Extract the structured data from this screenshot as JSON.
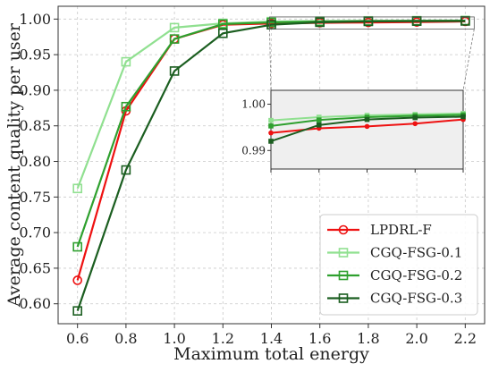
{
  "chart_data": {
    "type": "line",
    "xlabel": "Maximum total energy",
    "ylabel": "Average content quality per user",
    "x": [
      0.6,
      0.8,
      1.0,
      1.2,
      1.4,
      1.6,
      1.8,
      2.0,
      2.2
    ],
    "xlim": [
      0.52,
      2.28
    ],
    "ylim": [
      0.572,
      1.018
    ],
    "xticks": [
      "0.6",
      "0.8",
      "1.0",
      "1.2",
      "1.4",
      "1.6",
      "1.8",
      "2.0",
      "2.2"
    ],
    "yticks": [
      "0.60",
      "0.65",
      "0.70",
      "0.75",
      "0.80",
      "0.85",
      "0.90",
      "0.95",
      "1.00"
    ],
    "grid": true,
    "legend_position": "bottom-right",
    "series": [
      {
        "name": "LPDRL-F",
        "color": "#ee1111",
        "marker": "circle",
        "values": [
          0.633,
          0.871,
          0.972,
          0.992,
          0.9938,
          0.9948,
          0.9952,
          0.9958,
          0.9967
        ]
      },
      {
        "name": "CGQ-FSG-0.1",
        "color": "#90e090",
        "marker": "square",
        "values": [
          0.762,
          0.94,
          0.988,
          0.994,
          0.9965,
          0.9972,
          0.9976,
          0.9978,
          0.998
        ]
      },
      {
        "name": "CGQ-FSG-0.2",
        "color": "#2ea02e",
        "marker": "square",
        "values": [
          0.68,
          0.877,
          0.972,
          0.993,
          0.9953,
          0.9966,
          0.9972,
          0.9975,
          0.9977
        ]
      },
      {
        "name": "CGQ-FSG-0.3",
        "color": "#1b5e20",
        "marker": "square",
        "values": [
          0.59,
          0.788,
          0.927,
          0.98,
          0.992,
          0.9955,
          0.9967,
          0.9971,
          0.9973
        ]
      }
    ],
    "inset": {
      "x": [
        1.4,
        1.6,
        1.8,
        2.0,
        2.2
      ],
      "xlim": [
        1.4,
        2.2
      ],
      "ylim": [
        0.986,
        1.003
      ],
      "yticks": [
        "0.99",
        "1.00"
      ]
    }
  }
}
